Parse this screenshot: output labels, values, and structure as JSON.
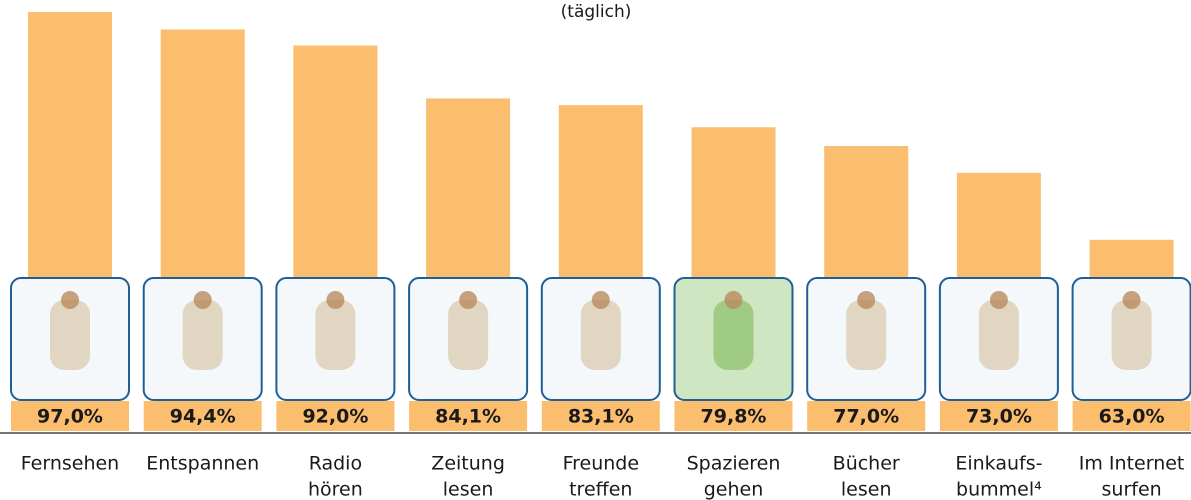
{
  "chart_data": {
    "type": "bar",
    "title": "(täglich)",
    "categories": [
      [
        "Fernsehen"
      ],
      [
        "Entspannen"
      ],
      [
        "Radio",
        "hören"
      ],
      [
        "Zeitung",
        "lesen"
      ],
      [
        "Freunde",
        "treffen"
      ],
      [
        "Spazieren",
        "gehen"
      ],
      [
        "Bücher",
        "lesen"
      ],
      [
        "Einkaufs-",
        "bummel⁴"
      ],
      [
        "Im Internet",
        "surfen"
      ]
    ],
    "values": [
      97.0,
      94.4,
      92.0,
      84.1,
      83.1,
      79.8,
      77.0,
      73.0,
      63.0
    ],
    "value_labels": [
      "97,0%",
      "94,4%",
      "92,0%",
      "84,1%",
      "83,1%",
      "79,8%",
      "77,0%",
      "73,0%",
      "63,0%"
    ],
    "color": "#fbbd6e",
    "ylim": [
      34.6,
      98.8
    ]
  }
}
